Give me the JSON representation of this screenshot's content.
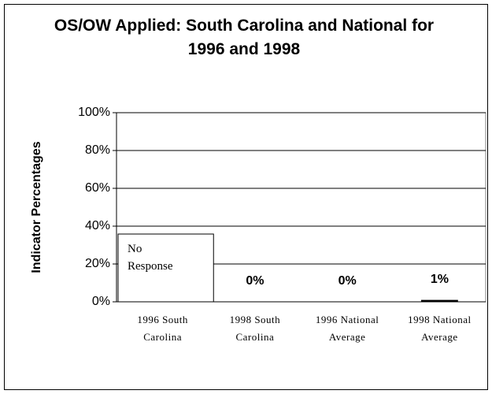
{
  "chart_data": {
    "type": "bar",
    "title": "OS/OW Applied: South Carolina and National for 1996 and 1998",
    "y_axis_label": "Indicator Percentages",
    "categories": [
      "1996 South Carolina",
      "1998 South Carolina",
      "1996 National Average",
      "1998 National Average"
    ],
    "values": [
      null,
      0,
      0,
      1
    ],
    "value_labels": [
      null,
      "0%",
      "0%",
      "1%"
    ],
    "annotation": "No Response",
    "color": "#000000",
    "ylim": [
      0,
      100
    ],
    "yticks": [
      {
        "value": 0,
        "label": "0%"
      },
      {
        "value": 20,
        "label": "20%"
      },
      {
        "value": 40,
        "label": "40%"
      },
      {
        "value": 60,
        "label": "60%"
      },
      {
        "value": 80,
        "label": "80%"
      },
      {
        "value": 100,
        "label": "100%"
      }
    ],
    "grid": true
  }
}
